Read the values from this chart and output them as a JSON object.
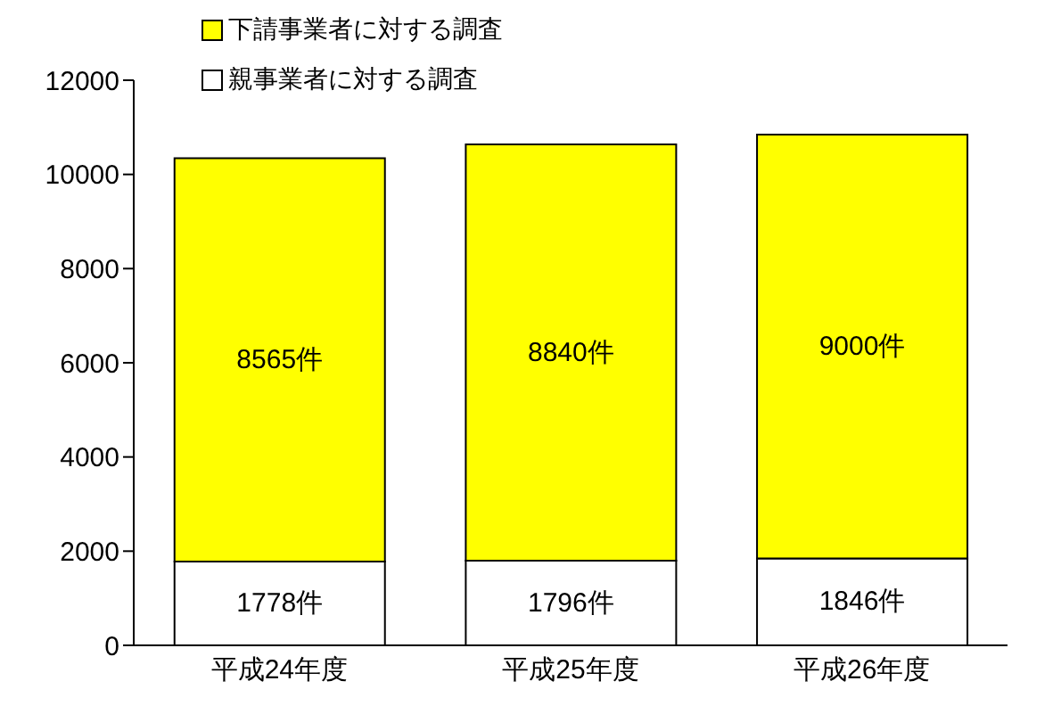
{
  "chart_data": {
    "type": "bar",
    "stacked": true,
    "categories": [
      "平成24年度",
      "平成25年度",
      "平成26年度"
    ],
    "series": [
      {
        "name": "親事業者に対する調査",
        "color": "#ffffff",
        "values": [
          1778,
          1796,
          1846
        ],
        "value_labels": [
          "1778件",
          "1796件",
          "1846件"
        ]
      },
      {
        "name": "下請事業者に対する調査",
        "color": "#ffff00",
        "values": [
          8565,
          8840,
          9000
        ],
        "value_labels": [
          "8565件",
          "8840件",
          "9000件"
        ]
      }
    ],
    "ylim": [
      0,
      12000
    ],
    "yticks": [
      0,
      2000,
      4000,
      6000,
      8000,
      10000,
      12000
    ],
    "grid": false,
    "legend": "top left"
  }
}
